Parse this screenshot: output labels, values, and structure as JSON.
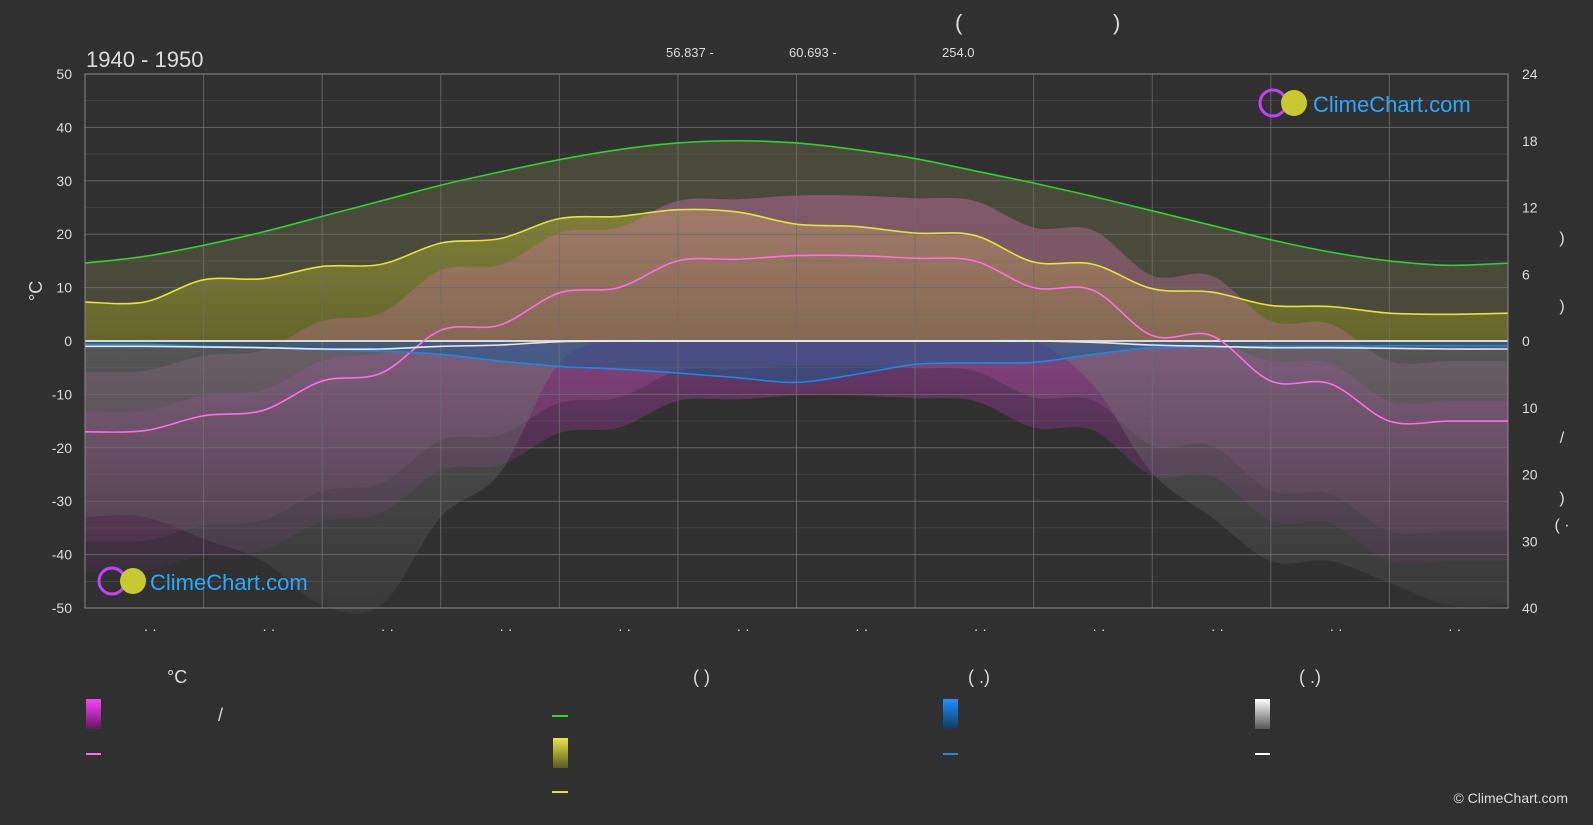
{
  "header": {
    "title_paren_open": "(",
    "title_paren_close": ")",
    "lat": "56.837 -",
    "lon": "60.693 -",
    "elev": "254.0",
    "period": "1940 - 1950"
  },
  "brand": {
    "watermark_top": "ClimeChart.com",
    "watermark_bottom": "ClimeChart.com",
    "copyright": "© ClimeChart.com"
  },
  "colors": {
    "background": "#303030",
    "sunshine_green": "#2fd02f",
    "daylight_yellow": "#e3e33a",
    "temp_max_pink": "#ff6ee6",
    "temp_min_magenta": "#e040e0",
    "precip_blue": "#1e88e5",
    "snow_white": "#e8e8e8"
  },
  "chart_data": {
    "type": "line",
    "axes": {
      "left": {
        "label": "°C",
        "ticks": [
          "50",
          "40",
          "30",
          "20",
          "10",
          "0",
          "-10",
          "-20",
          "-30",
          "-40",
          "-50"
        ],
        "range": [
          -50,
          50
        ]
      },
      "right_top": {
        "ticks": [
          "24",
          "18",
          "12",
          "6",
          "0"
        ],
        "range": [
          0,
          24
        ]
      },
      "right_bottom": {
        "ticks": [
          "10",
          "20",
          "30",
          "40"
        ],
        "range": [
          0,
          40
        ]
      },
      "right_glyphs": [
        ")",
        ")",
        "/",
        ")",
        "( ·"
      ],
      "x_ticks": [
        "· ·",
        "· ·",
        "· ·",
        "· ·",
        "· ·",
        "· ·",
        "· ·",
        "· ·",
        "· ·",
        "· ·",
        "· ·",
        "· ·"
      ]
    },
    "x": [
      0,
      0.5,
      1,
      1.5,
      2,
      2.5,
      3,
      3.5,
      4,
      4.5,
      5,
      5.5,
      6,
      6.5,
      7,
      7.5,
      8,
      8.5,
      9,
      9.5,
      10,
      10.5,
      11,
      11.5,
      12
    ],
    "series": [
      {
        "key": "daylight_hours",
        "axis": "right_top",
        "values": [
          7.0,
          7.6,
          8.6,
          9.8,
          11.2,
          12.6,
          14.0,
          15.2,
          16.3,
          17.2,
          17.8,
          18.0,
          17.8,
          17.2,
          16.4,
          15.3,
          14.2,
          13.0,
          11.7,
          10.4,
          9.1,
          8.0,
          7.2,
          6.8,
          7.0
        ]
      },
      {
        "key": "sunshine_hours",
        "axis": "right_top",
        "values": [
          3.5,
          3.5,
          5.5,
          5.6,
          6.7,
          6.9,
          8.8,
          9.2,
          11.0,
          11.2,
          11.8,
          11.6,
          10.5,
          10.3,
          9.7,
          9.5,
          7.1,
          6.9,
          4.7,
          4.4,
          3.2,
          3.1,
          2.5,
          2.4,
          2.5
        ]
      },
      {
        "key": "temp_max_avg",
        "axis": "left",
        "values": [
          -17,
          -16.8,
          -14,
          -13,
          -7.5,
          -6,
          2,
          3,
          9,
          10,
          15,
          15.3,
          16,
          16,
          15.5,
          15,
          10,
          9.5,
          1,
          1,
          -7.5,
          -8,
          -15,
          -15,
          -15
        ]
      },
      {
        "key": "precip_mm",
        "axis": "right_bottom",
        "values": [
          0.5,
          0.5,
          0.8,
          1.0,
          1.3,
          1.5,
          2.0,
          3.0,
          3.8,
          4.2,
          4.8,
          5.5,
          6.2,
          5.0,
          3.5,
          3.3,
          3.2,
          2.0,
          1.0,
          0.9,
          0.8,
          0.8,
          0.7,
          0.7,
          0.7
        ]
      },
      {
        "key": "snow_mm",
        "axis": "right_bottom",
        "values": [
          0.8,
          0.8,
          0.9,
          1.0,
          1.2,
          1.2,
          0.8,
          0.6,
          0.1,
          0,
          0,
          0,
          0,
          0,
          0,
          0,
          0,
          0.2,
          0.6,
          0.8,
          1.0,
          1.0,
          1.1,
          1.2,
          1.2
        ]
      }
    ]
  },
  "legend": {
    "col1_head": "°C",
    "col1_sep": "/",
    "col2_head": "(          )",
    "col3_head": "(   .)",
    "col4_head": "(   .)"
  }
}
